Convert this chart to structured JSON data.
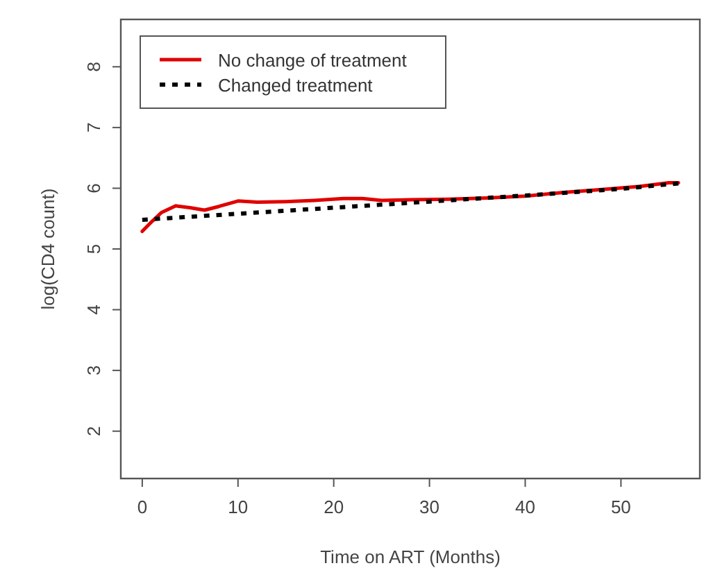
{
  "chart_data": {
    "type": "line",
    "xlabel": "Time on ART (Months)",
    "ylabel": "log(CD4 count)",
    "xlim": [
      -2.24,
      58.24
    ],
    "ylim": [
      1.22,
      8.78
    ],
    "xticks": [
      0,
      10,
      20,
      30,
      40,
      50
    ],
    "yticks": [
      2,
      3,
      4,
      5,
      6,
      7,
      8
    ],
    "grid": false,
    "legend": "top left",
    "series": [
      {
        "name": "No change of treatment",
        "color": "#e00000",
        "line_style": "solid",
        "x": [
          0,
          1,
          2,
          3.5,
          5,
          6.5,
          8,
          10,
          12,
          15,
          18,
          21,
          23,
          25,
          28,
          32,
          36,
          40,
          44,
          48,
          52,
          55,
          56
        ],
        "values": [
          5.29,
          5.45,
          5.6,
          5.71,
          5.68,
          5.64,
          5.7,
          5.79,
          5.77,
          5.78,
          5.8,
          5.83,
          5.83,
          5.8,
          5.81,
          5.82,
          5.84,
          5.87,
          5.93,
          5.98,
          6.03,
          6.09,
          6.09
        ]
      },
      {
        "name": "Changed treatment",
        "color": "#000000",
        "line_style": "dashed",
        "x": [
          0,
          10,
          20,
          30,
          40,
          50,
          56
        ],
        "values": [
          5.48,
          5.58,
          5.68,
          5.78,
          5.88,
          5.99,
          6.08
        ]
      }
    ]
  }
}
